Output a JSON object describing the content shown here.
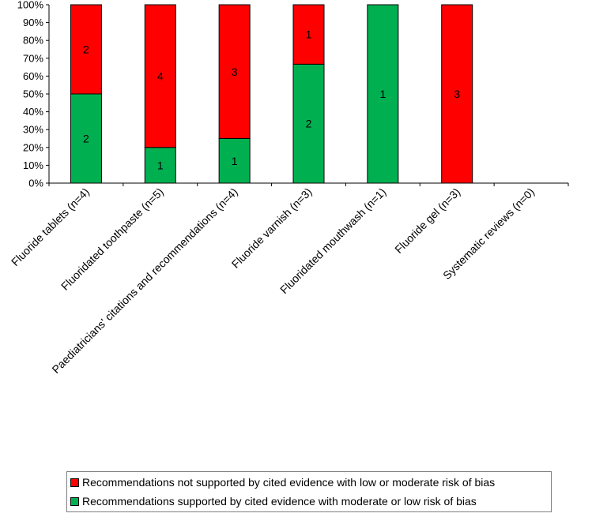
{
  "chart_data": {
    "type": "bar",
    "stacked": true,
    "normalized": true,
    "title": "",
    "xlabel": "",
    "ylabel": "",
    "ylim": [
      0,
      100
    ],
    "y_ticks": [
      "0%",
      "10%",
      "20%",
      "30%",
      "40%",
      "50%",
      "60%",
      "70%",
      "80%",
      "90%",
      "100%"
    ],
    "categories": [
      "Fluoride tablets (n=4)",
      "Fluoridated toothpaste (n=5)",
      "Paediatricians' citations and recommendations (n=4)",
      "Fluoride varnish (n=3)",
      "Fluoridated mouthwash (n=1)",
      "Fluoride gel (n=3)",
      "Systematic reviews (n=0)"
    ],
    "series": [
      {
        "name": "Recommendations supported by cited evidence with moderate or low risk of bias",
        "color": "#00b050",
        "values": [
          2,
          1,
          1,
          2,
          1,
          0,
          0
        ]
      },
      {
        "name": "Recommendations not supported by cited evidence with low or moderate risk of bias",
        "color": "#ff0000",
        "values": [
          2,
          4,
          3,
          1,
          0,
          3,
          0
        ]
      }
    ],
    "data_labels": true,
    "grid": false,
    "legend_position": "bottom"
  }
}
